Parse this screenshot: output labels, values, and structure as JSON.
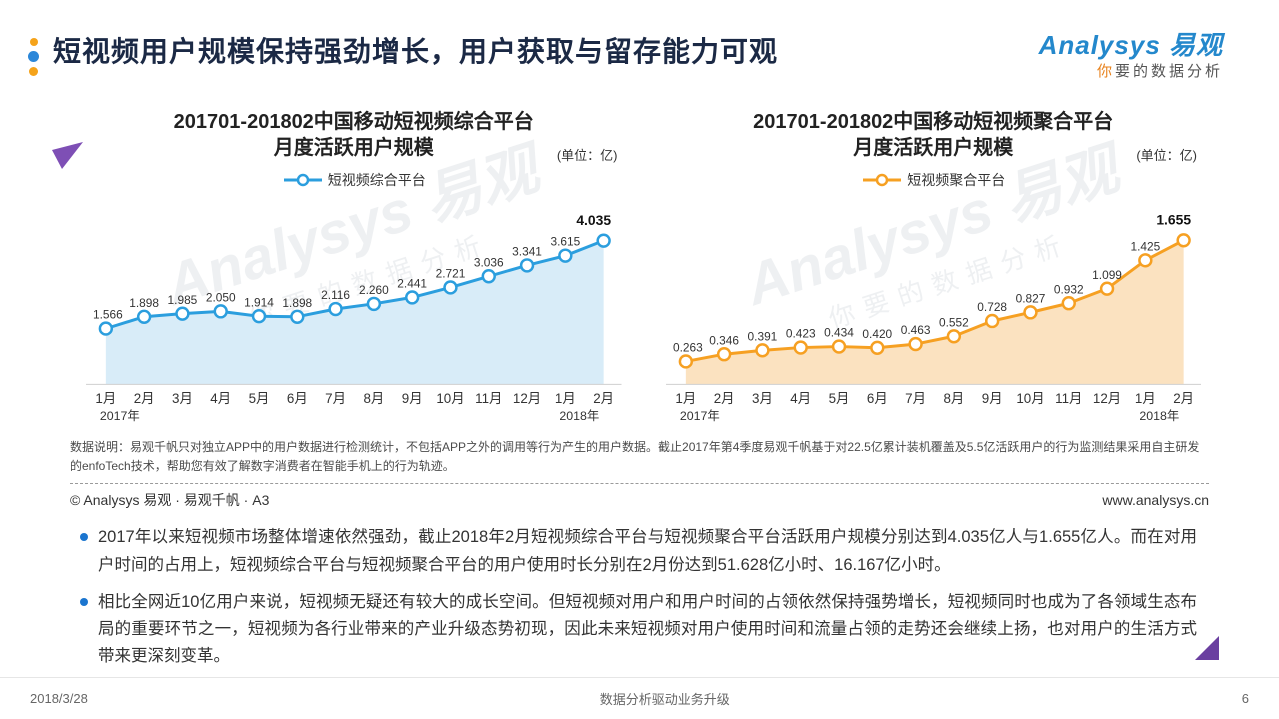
{
  "header": {
    "title": "短视频用户规模保持强劲增长，用户获取与留存能力可观",
    "logo_brand": "Analysys 易观",
    "logo_tagline_accent": "你",
    "logo_tagline_rest": "要的数据分析"
  },
  "watermark": {
    "line1": "Analysys 易观",
    "line2": "你要的数据分析"
  },
  "chart_data": [
    {
      "type": "line",
      "title_line1": "201701-201802中国移动短视频综合平台",
      "title_line2": "月度活跃用户规模",
      "unit": "(单位：亿)",
      "legend": "短视频综合平台",
      "line_color": "#2b9ede",
      "fill_color": "#d8ecf8",
      "categories": [
        "1月",
        "2月",
        "3月",
        "4月",
        "5月",
        "6月",
        "7月",
        "8月",
        "9月",
        "10月",
        "11月",
        "12月",
        "1月",
        "2月"
      ],
      "year_labels": [
        {
          "index": 0,
          "text": "2017年"
        },
        {
          "index": 12,
          "text": "2018年"
        }
      ],
      "values": [
        1.566,
        1.898,
        1.985,
        2.05,
        1.914,
        1.898,
        2.116,
        2.26,
        2.441,
        2.721,
        3.036,
        3.341,
        3.615,
        4.035
      ],
      "ylim": [
        0,
        4.4
      ],
      "xlabel": "",
      "ylabel": "",
      "grid": false,
      "legend_position": "top"
    },
    {
      "type": "line",
      "title_line1": "201701-201802中国移动短视频聚合平台",
      "title_line2": "月度活跃用户规模",
      "unit": "(单位：亿)",
      "legend": "短视频聚合平台",
      "line_color": "#f6a022",
      "fill_color": "#fbe2c0",
      "categories": [
        "1月",
        "2月",
        "3月",
        "4月",
        "5月",
        "6月",
        "7月",
        "8月",
        "9月",
        "10月",
        "11月",
        "12月",
        "1月",
        "2月"
      ],
      "year_labels": [
        {
          "index": 0,
          "text": "2017年"
        },
        {
          "index": 12,
          "text": "2018年"
        }
      ],
      "values": [
        0.263,
        0.346,
        0.391,
        0.423,
        0.434,
        0.42,
        0.463,
        0.552,
        0.728,
        0.827,
        0.932,
        1.099,
        1.425,
        1.655
      ],
      "ylim": [
        0,
        1.8
      ],
      "xlabel": "",
      "ylabel": "",
      "grid": false,
      "legend_position": "top"
    }
  ],
  "notes": {
    "description": "数据说明：易观千帆只对独立APP中的用户数据进行检测统计，不包括APP之外的调用等行为产生的用户数据。截止2017年第4季度易观千帆基于对22.5亿累计装机覆盖及5.5亿活跃用户的行为监测结果采用自主研发的enfoTech技术，帮助您有效了解数字消费者在智能手机上的行为轨迹。",
    "copyright": "© Analysys 易观 · 易观千帆 · A3",
    "website": "www.analysys.cn"
  },
  "bullets": [
    "2017年以来短视频市场整体增速依然强劲，截止2018年2月短视频综合平台与短视频聚合平台活跃用户规模分别达到4.035亿人与1.655亿人。而在对用户时间的占用上，短视频综合平台与短视频聚合平台的用户使用时长分别在2月份达到51.628亿小时、16.167亿小时。",
    "相比全网近10亿用户来说，短视频无疑还有较大的成长空间。但短视频对用户和用户时间的占领依然保持强势增长，短视频同时也成为了各领域生态布局的重要环节之一，短视频为各行业带来的产业升级态势初现，因此未来短视频对用户使用时间和流量占领的走势还会继续上扬，也对用户的生活方式带来更深刻变革。"
  ],
  "footer": {
    "date": "2018/3/28",
    "center": "数据分析驱动业务升级",
    "page": "6"
  }
}
